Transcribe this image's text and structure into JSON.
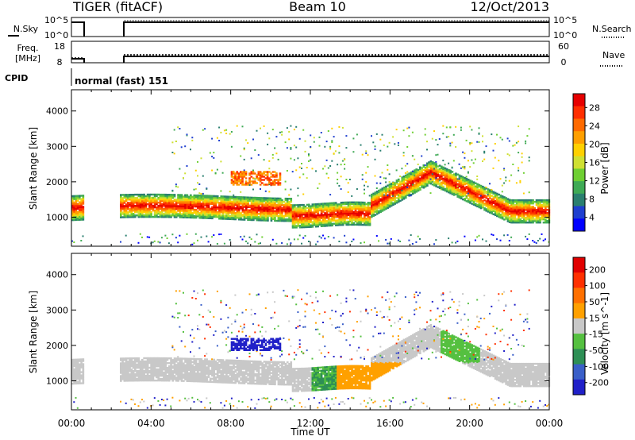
{
  "header": {
    "title": "TIGER (fitACF)",
    "beam": "Beam 10",
    "date": "12/Oct/2013"
  },
  "housekeeping": {
    "nsky_label": "N.Sky",
    "nsearch_label": "N.Search",
    "freq_label_1": "Freq.",
    "freq_label_2": "[MHz]",
    "nave_label": "Nave",
    "cpid_label": "CPID",
    "cpid_value": "normal (fast) 151",
    "noise_ticks_left": [
      "10^5",
      "10^0"
    ],
    "noise_ticks_right": [
      "10^5",
      "10^0"
    ],
    "freq_ticks": [
      "18",
      "8"
    ],
    "nave_ticks": [
      "60",
      "0"
    ],
    "freq_mhz": "10",
    "nave_value": "15"
  },
  "chart_data": [
    {
      "type": "heatmap",
      "panel": "power",
      "ylabel": "Slant Range [km]",
      "xlabel": "",
      "colorbar_label": "Power [dB]",
      "x_ticks": [
        "00:00",
        "04:00",
        "08:00",
        "12:00",
        "16:00",
        "20:00",
        "00:00"
      ],
      "xlim_hours": [
        0,
        24
      ],
      "ylim_km": [
        180,
        4600
      ],
      "y_ticks": [
        1000,
        2000,
        3000,
        4000
      ],
      "colorbar_ticks": [
        "28",
        "24",
        "20",
        "16",
        "12",
        "8",
        "4"
      ],
      "colorbar_colors": [
        "#0000ff",
        "#1f3fcf",
        "#2a7f6f",
        "#3faa55",
        "#6fcf33",
        "#cfe033",
        "#ffd000",
        "#ff9f00",
        "#ff6a00",
        "#ff2e00",
        "#e60000"
      ],
      "data_gap_hours": [
        0.6,
        2.4
      ]
    },
    {
      "type": "heatmap",
      "panel": "velocity",
      "ylabel": "Slant Range [km]",
      "xlabel": "Time UT",
      "colorbar_label": "Velocity [m s^-1]",
      "x_ticks": [
        "00:00",
        "04:00",
        "08:00",
        "12:00",
        "16:00",
        "20:00",
        "00:00"
      ],
      "xlim_hours": [
        0,
        24
      ],
      "ylim_km": [
        180,
        4600
      ],
      "y_ticks": [
        1000,
        2000,
        3000,
        4000
      ],
      "colorbar_ticks": [
        "200",
        "100",
        "50",
        "15",
        "-15",
        "-50",
        "-100",
        "-200"
      ],
      "colorbar_colors": [
        "#2020c8",
        "#3a5fc8",
        "#2e8f55",
        "#55c040",
        "#c8c8c8",
        "#ffa000",
        "#ff7000",
        "#ff3000",
        "#e00000"
      ],
      "ground_scatter_color": "#c8c8c8",
      "data_gap_hours": [
        0.6,
        2.4
      ]
    }
  ]
}
